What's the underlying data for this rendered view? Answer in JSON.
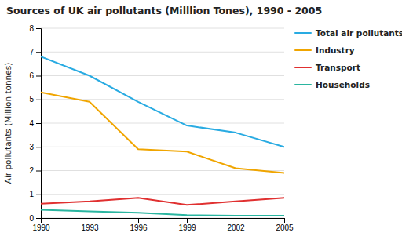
{
  "chart_data": {
    "type": "line",
    "title": "Sources of UK air pollutants (Milllion Tones), 1990 - 2005",
    "ylabel": "Air pollutants (Million tonnes)",
    "x": [
      1990,
      1993,
      1996,
      1999,
      2002,
      2005
    ],
    "series": [
      {
        "name": "Total air pollutants",
        "color": "#29abe2",
        "values": [
          6.8,
          6.0,
          4.9,
          3.9,
          3.6,
          3.0
        ]
      },
      {
        "name": "Industry",
        "color": "#f0a500",
        "values": [
          5.3,
          4.9,
          2.9,
          2.8,
          2.1,
          1.9
        ]
      },
      {
        "name": "Transport",
        "color": "#e03030",
        "values": [
          0.6,
          0.7,
          0.85,
          0.55,
          0.7,
          0.85
        ]
      },
      {
        "name": "Households",
        "color": "#2ab5a0",
        "values": [
          0.35,
          0.28,
          0.22,
          0.12,
          0.1,
          0.1
        ]
      }
    ],
    "xlim": [
      1990,
      2005
    ],
    "xticks": [
      1990,
      1993,
      1996,
      1999,
      2002,
      2005
    ],
    "ylim": [
      0,
      8
    ],
    "yticks": [
      0,
      1,
      2,
      3,
      4,
      5,
      6,
      7,
      8
    ],
    "grid": true,
    "legend": "right"
  }
}
